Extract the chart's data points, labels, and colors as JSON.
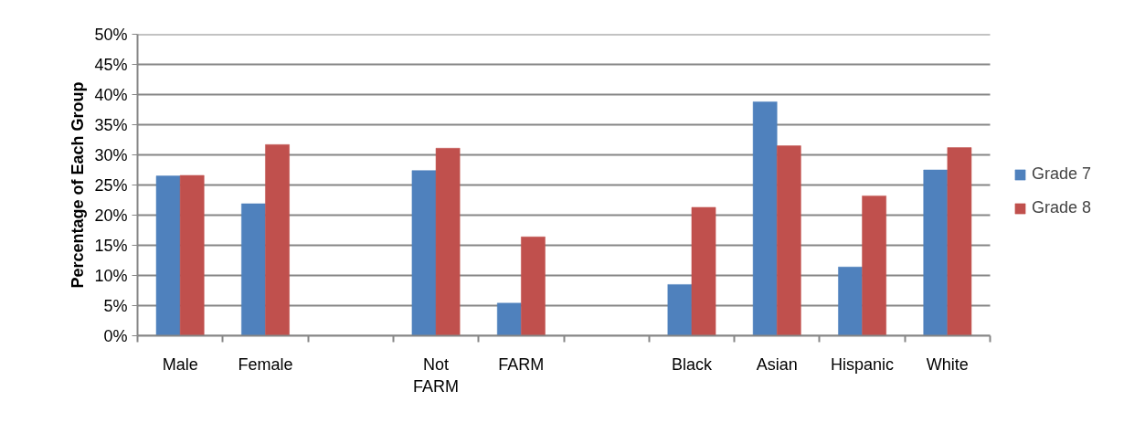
{
  "chart_data": {
    "type": "bar",
    "ylabel": "Percentage of Each Group",
    "categories": [
      "Male",
      "Female",
      null,
      "Not FARM",
      "FARM",
      null,
      "Black",
      "Asian",
      "Hispanic",
      "White"
    ],
    "series": [
      {
        "name": "Grade 7",
        "color": "#4f81bd",
        "values": [
          26.5,
          21.9,
          null,
          27.4,
          5.4,
          null,
          8.5,
          38.8,
          11.4,
          27.5
        ]
      },
      {
        "name": "Grade 8",
        "color": "#c0504d",
        "values": [
          26.6,
          31.7,
          null,
          31.1,
          16.4,
          null,
          21.3,
          31.5,
          23.2,
          31.2
        ]
      }
    ],
    "ylim": [
      0,
      50
    ],
    "yticks": [
      {
        "value": 0,
        "label": "0%"
      },
      {
        "value": 5,
        "label": "5%"
      },
      {
        "value": 10,
        "label": "10%"
      },
      {
        "value": 15,
        "label": "15%"
      },
      {
        "value": 20,
        "label": "20%"
      },
      {
        "value": 25,
        "label": "25%"
      },
      {
        "value": 30,
        "label": "30%"
      },
      {
        "value": 35,
        "label": "35%"
      },
      {
        "value": 40,
        "label": "40%"
      },
      {
        "value": 45,
        "label": "45%"
      },
      {
        "value": 50,
        "label": "50%"
      }
    ],
    "grid": "y",
    "legend": "right"
  }
}
